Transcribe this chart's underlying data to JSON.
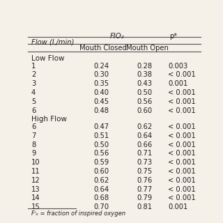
{
  "header_col0": "Flow (L/min)",
  "header_col1": "Mouth Closed",
  "header_col2": "Mouth Open",
  "header_col3": "p*",
  "fio2_label": "FIO₂",
  "section_low": "Low Flow",
  "section_high": "High Flow",
  "rows": [
    {
      "flow": "1",
      "closed": "0.24",
      "open": "0.28",
      "p": "0.003",
      "section": "low"
    },
    {
      "flow": "2",
      "closed": "0.30",
      "open": "0.38",
      "p": "< 0.001",
      "section": "low"
    },
    {
      "flow": "3",
      "closed": "0.35",
      "open": "0.43",
      "p": "0.001",
      "section": "low"
    },
    {
      "flow": "4",
      "closed": "0.40",
      "open": "0.50",
      "p": "< 0.001",
      "section": "low"
    },
    {
      "flow": "5",
      "closed": "0.45",
      "open": "0.56",
      "p": "< 0.001",
      "section": "low"
    },
    {
      "flow": "6",
      "closed": "0.48",
      "open": "0.60",
      "p": "< 0.001",
      "section": "low"
    },
    {
      "flow": "6",
      "closed": "0.47",
      "open": "0.62",
      "p": "< 0.001",
      "section": "high"
    },
    {
      "flow": "7",
      "closed": "0.51",
      "open": "0.64",
      "p": "< 0.001",
      "section": "high"
    },
    {
      "flow": "8",
      "closed": "0.50",
      "open": "0.66",
      "p": "< 0.001",
      "section": "high"
    },
    {
      "flow": "9",
      "closed": "0.56",
      "open": "0.71",
      "p": "< 0.001",
      "section": "high"
    },
    {
      "flow": "10",
      "closed": "0.59",
      "open": "0.73",
      "p": "< 0.001",
      "section": "high"
    },
    {
      "flow": "11",
      "closed": "0.60",
      "open": "0.75",
      "p": "< 0.001",
      "section": "high"
    },
    {
      "flow": "12",
      "closed": "0.62",
      "open": "0.76",
      "p": "< 0.001",
      "section": "high"
    },
    {
      "flow": "13",
      "closed": "0.64",
      "open": "0.77",
      "p": "< 0.001",
      "section": "high"
    },
    {
      "flow": "14",
      "closed": "0.68",
      "open": "0.79",
      "p": "< 0.001",
      "section": "high"
    },
    {
      "flow": "15",
      "closed": "0.70",
      "open": "0.81",
      "p": "0.001",
      "section": "high"
    }
  ],
  "footnote": "Fᴵₒ = fraction of inspired oxygen",
  "bg_color": "#f5f0e8",
  "text_color": "#222222",
  "line_color": "#555555",
  "font_size": 7.2,
  "section_font_size": 7.5
}
